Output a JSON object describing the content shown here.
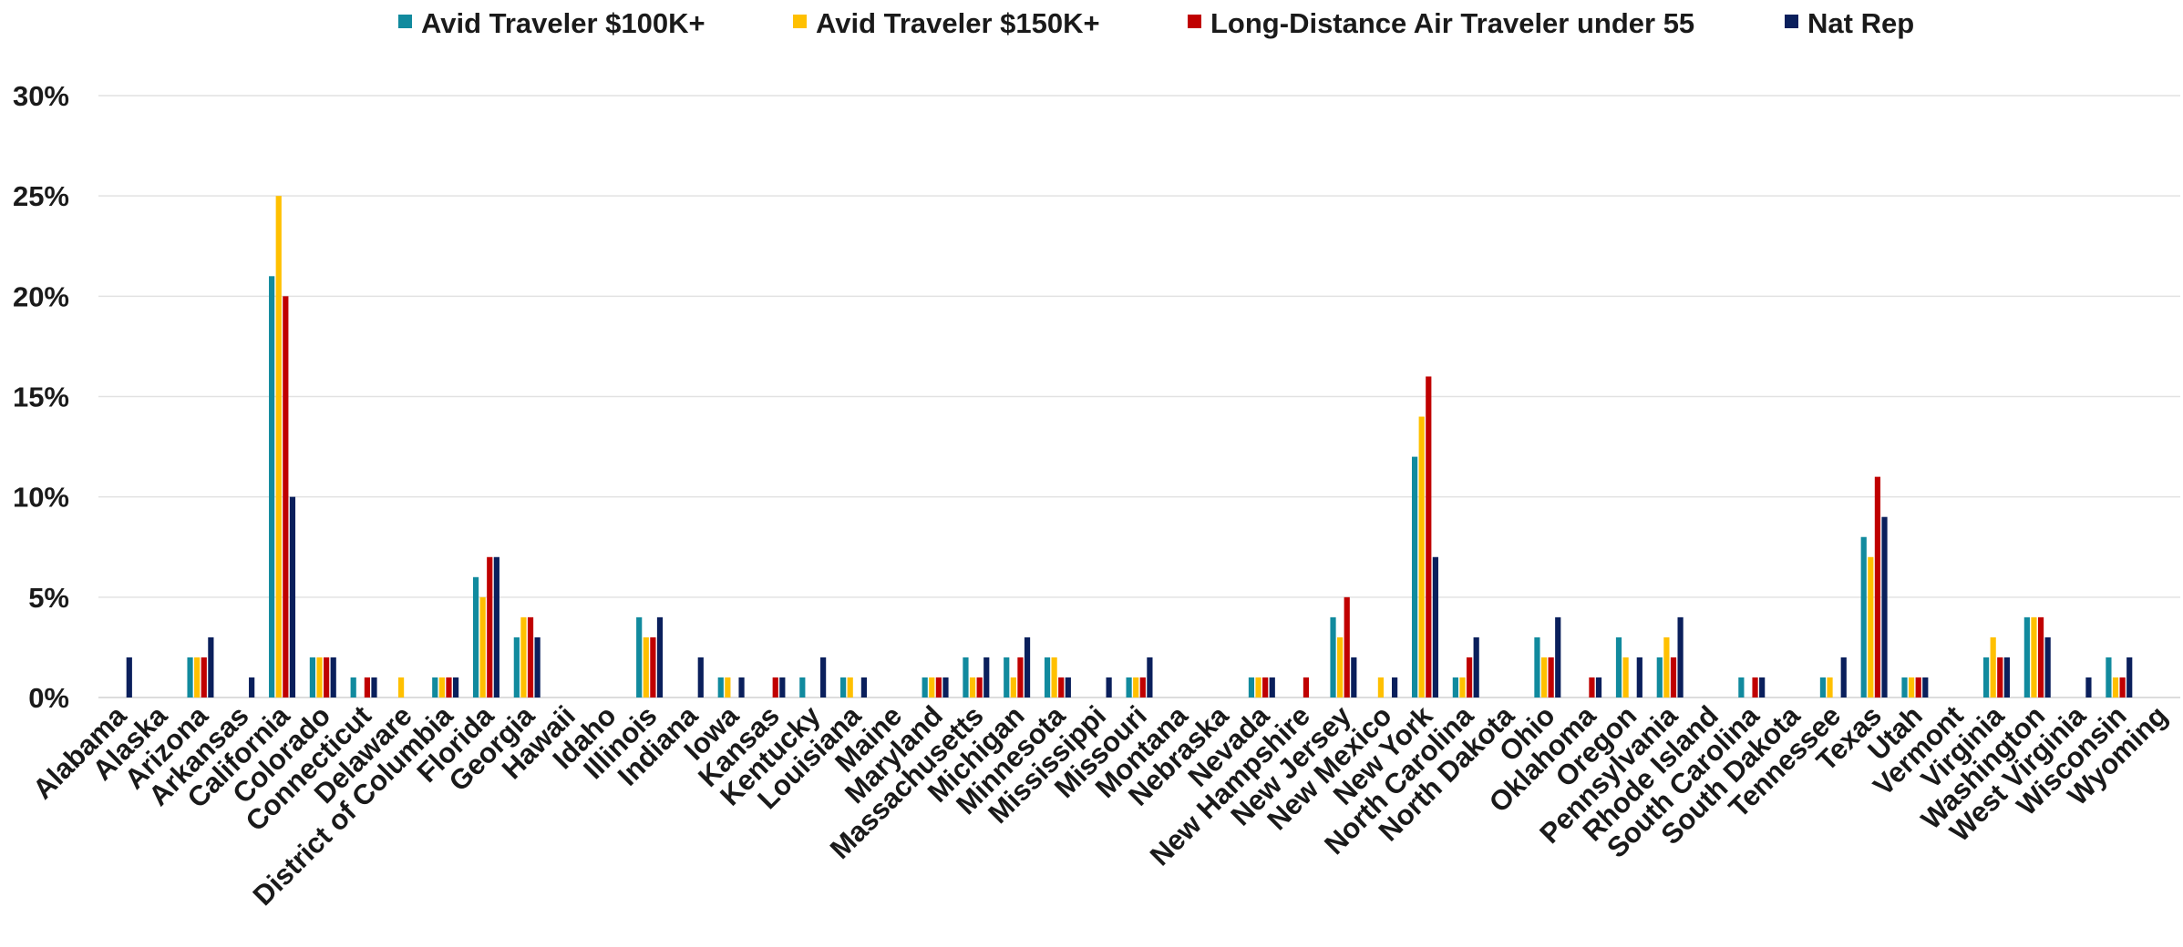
{
  "chart_data": {
    "type": "bar",
    "title": "",
    "xlabel": "",
    "ylabel": "",
    "ylim": [
      0,
      30
    ],
    "yticks": [
      0,
      5,
      10,
      15,
      20,
      25,
      30
    ],
    "ytick_format": "percent",
    "grid": "horizontal",
    "legend_position": "top",
    "categories": [
      "Alabama",
      "Alaska",
      "Arizona",
      "Arkansas",
      "California",
      "Colorado",
      "Connecticut",
      "Delaware",
      "District of Columbia",
      "Florida",
      "Georgia",
      "Hawaii",
      "Idaho",
      "Illinois",
      "Indiana",
      "Iowa",
      "Kansas",
      "Kentucky",
      "Louisiana",
      "Maine",
      "Maryland",
      "Massachusetts",
      "Michigan",
      "Minnesota",
      "Mississippi",
      "Missouri",
      "Montana",
      "Nebraska",
      "Nevada",
      "New Hampshire",
      "New Jersey",
      "New Mexico",
      "New York",
      "North Carolina",
      "North Dakota",
      "Ohio",
      "Oklahoma",
      "Oregon",
      "Pennsylvania",
      "Rhode Island",
      "South Carolina",
      "South Dakota",
      "Tennessee",
      "Texas",
      "Utah",
      "Vermont",
      "Virginia",
      "Washington",
      "West Virginia",
      "Wisconsin",
      "Wyoming"
    ],
    "series": [
      {
        "name": "Avid Traveler $100K+",
        "color": "#118a9e",
        "values": [
          0,
          0,
          2,
          0,
          21,
          2,
          1,
          0,
          1,
          6,
          3,
          0,
          0,
          4,
          0,
          1,
          0,
          1,
          1,
          0,
          1,
          2,
          2,
          2,
          0,
          1,
          0,
          0,
          1,
          0,
          4,
          0,
          12,
          1,
          0,
          3,
          0,
          3,
          2,
          0,
          1,
          0,
          1,
          8,
          1,
          0,
          2,
          4,
          0,
          2,
          0
        ]
      },
      {
        "name": "Avid Traveler $150K+",
        "color": "#ffc000",
        "values": [
          0,
          0,
          2,
          0,
          25,
          2,
          0,
          1,
          1,
          5,
          4,
          0,
          0,
          3,
          0,
          1,
          0,
          0,
          1,
          0,
          1,
          1,
          1,
          2,
          0,
          1,
          0,
          0,
          1,
          0,
          3,
          1,
          14,
          1,
          0,
          2,
          0,
          2,
          3,
          0,
          0,
          0,
          1,
          7,
          1,
          0,
          3,
          4,
          0,
          1,
          0
        ]
      },
      {
        "name": "Long-Distance Air Traveler under 55",
        "color": "#c00000",
        "values": [
          0,
          0,
          2,
          0,
          20,
          2,
          1,
          0,
          1,
          7,
          4,
          0,
          0,
          3,
          0,
          0,
          1,
          0,
          0,
          0,
          1,
          1,
          2,
          1,
          0,
          1,
          0,
          0,
          1,
          1,
          5,
          0,
          16,
          2,
          0,
          2,
          1,
          0,
          2,
          0,
          1,
          0,
          0,
          11,
          1,
          0,
          2,
          4,
          0,
          1,
          0
        ]
      },
      {
        "name": "Nat Rep",
        "color": "#0a1f5c",
        "values": [
          2,
          0,
          3,
          1,
          10,
          2,
          1,
          0,
          1,
          7,
          3,
          0,
          0,
          4,
          2,
          1,
          1,
          2,
          1,
          0,
          1,
          2,
          3,
          1,
          1,
          2,
          0,
          0,
          1,
          0,
          2,
          1,
          7,
          3,
          0,
          4,
          1,
          2,
          4,
          0,
          1,
          0,
          2,
          9,
          1,
          0,
          2,
          3,
          1,
          2,
          0
        ]
      }
    ]
  }
}
